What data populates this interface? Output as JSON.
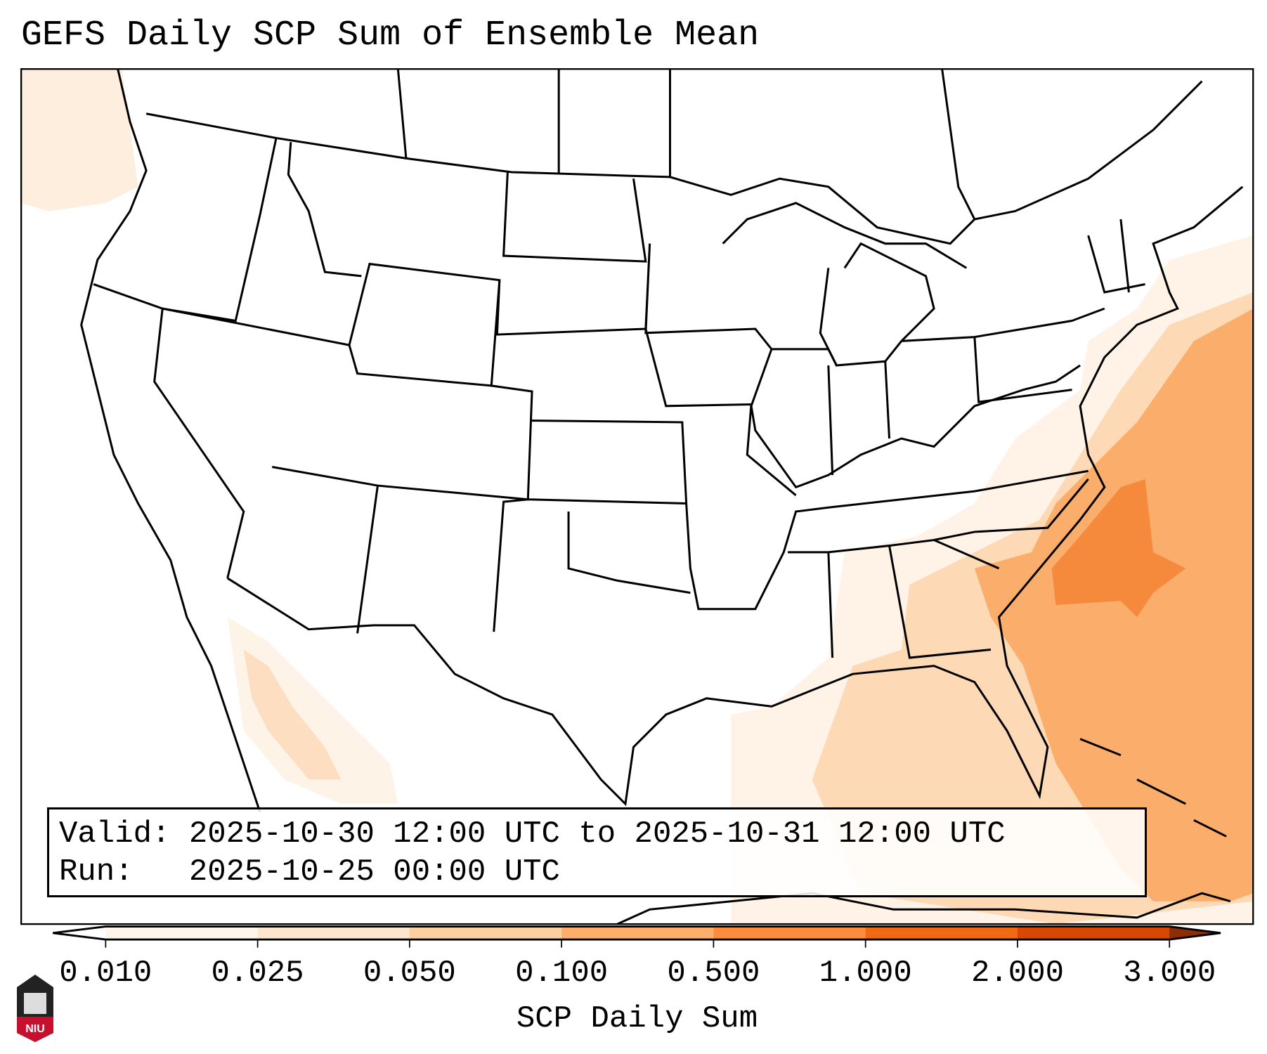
{
  "title": "GEFS Daily SCP Sum of Ensemble Mean",
  "info": {
    "valid_label": "Valid:",
    "valid_value": "2025-10-30 12:00 UTC to 2025-10-31 12:00 UTC",
    "run_label": "Run:",
    "run_value": "2025-10-25 00:00 UTC"
  },
  "colorbar": {
    "label": "SCP Daily Sum",
    "ticks": [
      "0.010",
      "0.025",
      "0.050",
      "0.100",
      "0.500",
      "1.000",
      "2.000",
      "3.000"
    ],
    "colors": [
      "#fff5eb",
      "#fee6ce",
      "#fdd0a2",
      "#fdae6b",
      "#fd8d3c",
      "#f16913",
      "#d94801"
    ],
    "under_color": "#ffffff",
    "over_color": "#8c2d04"
  },
  "logo": {
    "text": "NIU"
  }
}
